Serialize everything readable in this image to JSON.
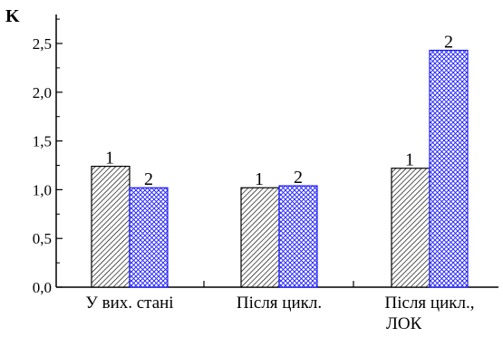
{
  "chart_data": {
    "type": "bar",
    "title": "",
    "xlabel": "",
    "ylabel": "K",
    "ylim": [
      0,
      2.8
    ],
    "yticks": [
      "0,0",
      "0,5",
      "1,0",
      "1,5",
      "2,0",
      "2,5"
    ],
    "categories": [
      {
        "lines": [
          "У вих. стані"
        ]
      },
      {
        "lines": [
          "Після цикл."
        ]
      },
      {
        "lines": [
          "Після цикл.,",
          "ЛОК"
        ]
      }
    ],
    "series": [
      {
        "name": "",
        "label": "1",
        "pattern": "hatch",
        "color": "#000000",
        "values": [
          1.24,
          1.02,
          1.22
        ]
      },
      {
        "name": "",
        "label": "2",
        "pattern": "crosshatch",
        "color": "#1a1aff",
        "values": [
          1.02,
          1.04,
          2.43
        ]
      }
    ],
    "grid": false,
    "legend": "none"
  }
}
